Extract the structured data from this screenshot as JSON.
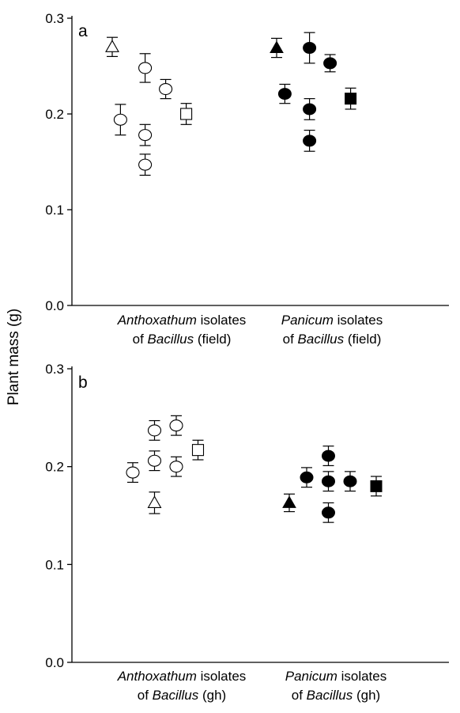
{
  "chart_data": [
    {
      "type": "scatter",
      "panel_label": "a",
      "ylabel": "Plant mass (g)",
      "ylim": [
        0,
        0.3
      ],
      "yticks": [
        "0.0",
        "0.1",
        "0.2",
        "0.3"
      ],
      "groups": [
        {
          "line1": {
            "italic": "Anthoxathum",
            "rest": " isolates"
          },
          "line2": {
            "pre": "of ",
            "italic": "Bacillus",
            "rest": " (field)"
          }
        },
        {
          "line1": {
            "italic": "Panicum",
            "rest": " isolates"
          },
          "line2": {
            "pre": "of ",
            "italic": "Bacillus",
            "rest": " (field)"
          }
        }
      ],
      "points": [
        {
          "group": 0,
          "slot": 0.8,
          "marker": "triangle-open",
          "y": 0.27,
          "err": 0.01
        },
        {
          "group": 0,
          "slot": 0.9,
          "marker": "circle-open",
          "y": 0.194,
          "err": 0.016
        },
        {
          "group": 0,
          "slot": 1.2,
          "marker": "circle-open",
          "y": 0.248,
          "err": 0.015
        },
        {
          "group": 0,
          "slot": 1.2,
          "marker": "circle-open",
          "y": 0.178,
          "err": 0.011
        },
        {
          "group": 0,
          "slot": 1.2,
          "marker": "circle-open",
          "y": 0.147,
          "err": 0.011
        },
        {
          "group": 0,
          "slot": 1.45,
          "marker": "circle-open",
          "y": 0.226,
          "err": 0.01
        },
        {
          "group": 0,
          "slot": 1.7,
          "marker": "square-open",
          "y": 0.2,
          "err": 0.011
        },
        {
          "group": 1,
          "slot": 2.8,
          "marker": "triangle-filled",
          "y": 0.269,
          "err": 0.01
        },
        {
          "group": 1,
          "slot": 2.9,
          "marker": "circle-filled",
          "y": 0.221,
          "err": 0.01
        },
        {
          "group": 1,
          "slot": 3.2,
          "marker": "circle-filled",
          "y": 0.269,
          "err": 0.016
        },
        {
          "group": 1,
          "slot": 3.2,
          "marker": "circle-filled",
          "y": 0.205,
          "err": 0.011
        },
        {
          "group": 1,
          "slot": 3.2,
          "marker": "circle-filled",
          "y": 0.172,
          "err": 0.011
        },
        {
          "group": 1,
          "slot": 3.45,
          "marker": "circle-filled",
          "y": 0.253,
          "err": 0.009
        },
        {
          "group": 1,
          "slot": 3.7,
          "marker": "square-filled",
          "y": 0.216,
          "err": 0.011
        }
      ]
    },
    {
      "type": "scatter",
      "panel_label": "b",
      "ylabel": "Plant mass (g)",
      "ylim": [
        0,
        0.3
      ],
      "yticks": [
        "0.0",
        "0.1",
        "0.2",
        "0.3"
      ],
      "groups": [
        {
          "line1": {
            "italic": "Anthoxathum",
            "rest": " isolates"
          },
          "line2": {
            "pre": "of ",
            "italic": "Bacillus",
            "rest": " (gh)"
          }
        },
        {
          "line1": {
            "italic": "Panicum",
            "rest": " isolates"
          },
          "line2": {
            "pre": "of ",
            "italic": "Bacillus",
            "rest": " (gh)"
          }
        }
      ],
      "points": [
        {
          "group": 0,
          "slot": 0.8,
          "marker": "circle-open",
          "y": 0.194,
          "err": 0.01
        },
        {
          "group": 0,
          "slot": 1.05,
          "marker": "circle-open",
          "y": 0.237,
          "err": 0.01
        },
        {
          "group": 0,
          "slot": 1.05,
          "marker": "circle-open",
          "y": 0.206,
          "err": 0.01
        },
        {
          "group": 0,
          "slot": 1.05,
          "marker": "triangle-open",
          "y": 0.163,
          "err": 0.011
        },
        {
          "group": 0,
          "slot": 1.3,
          "marker": "circle-open",
          "y": 0.242,
          "err": 0.01
        },
        {
          "group": 0,
          "slot": 1.3,
          "marker": "circle-open",
          "y": 0.2,
          "err": 0.01
        },
        {
          "group": 0,
          "slot": 1.55,
          "marker": "square-open",
          "y": 0.217,
          "err": 0.01
        },
        {
          "group": 1,
          "slot": 2.6,
          "marker": "triangle-filled",
          "y": 0.163,
          "err": 0.009
        },
        {
          "group": 1,
          "slot": 2.8,
          "marker": "circle-filled",
          "y": 0.189,
          "err": 0.01
        },
        {
          "group": 1,
          "slot": 3.05,
          "marker": "circle-filled",
          "y": 0.211,
          "err": 0.01
        },
        {
          "group": 1,
          "slot": 3.05,
          "marker": "circle-filled",
          "y": 0.185,
          "err": 0.01
        },
        {
          "group": 1,
          "slot": 3.05,
          "marker": "circle-filled",
          "y": 0.153,
          "err": 0.01
        },
        {
          "group": 1,
          "slot": 3.3,
          "marker": "circle-filled",
          "y": 0.185,
          "err": 0.01
        },
        {
          "group": 1,
          "slot": 3.6,
          "marker": "square-filled",
          "y": 0.18,
          "err": 0.01
        }
      ]
    }
  ],
  "colors": {
    "ink": "#000000",
    "open_fill": "#ffffff"
  }
}
